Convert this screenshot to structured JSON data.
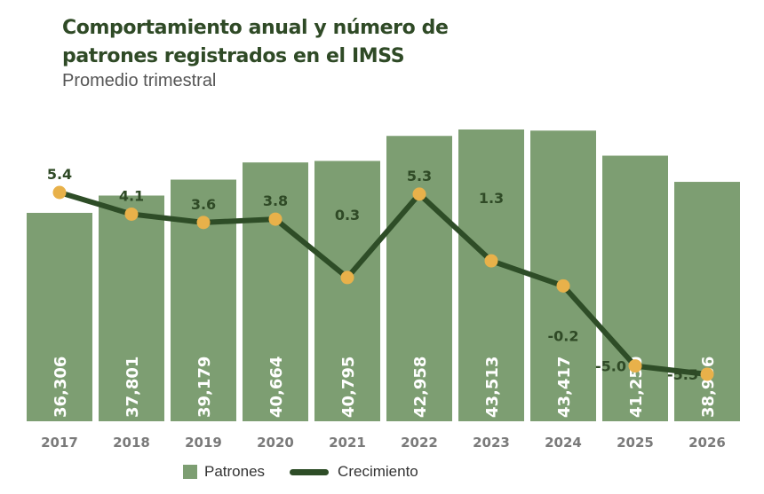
{
  "header": {
    "title": "Comportamiento anual y número de patrones registrados en el IMSS",
    "subtitle": "Promedio trimestral"
  },
  "legend": {
    "bars_label": "Patrones",
    "line_label": "Crecimiento"
  },
  "colors": {
    "bar": "#7d9e72",
    "line": "#2e4d27",
    "marker": "#e8b14a",
    "title": "#2f4a26",
    "growth_label": "#2f4a26",
    "bar_label": "#ffffff",
    "year_label": "#7a7a7a"
  },
  "chart_data": {
    "type": "bar",
    "categories": [
      "2017",
      "2018",
      "2019",
      "2020",
      "2021",
      "2022",
      "2023",
      "2024",
      "2025",
      "2026"
    ],
    "series": [
      {
        "name": "Patrones",
        "type": "bar",
        "values": [
          36306,
          37801,
          39179,
          40664,
          40795,
          42958,
          43513,
          43417,
          41250,
          38986
        ],
        "labels": [
          "36,306",
          "37,801",
          "39,179",
          "40,664",
          "40,795",
          "42,958",
          "43,513",
          "43,417",
          "41,250",
          "38,986"
        ]
      },
      {
        "name": "Crecimiento",
        "type": "line",
        "values": [
          5.4,
          4.1,
          3.6,
          3.8,
          0.3,
          5.3,
          1.3,
          -0.2,
          -5.0,
          -5.5
        ],
        "labels": [
          "5.4",
          "4.1",
          "3.6",
          "3.8",
          "0.3",
          "5.3",
          "1.3",
          "-0.2",
          "-5.0",
          "-5.5"
        ]
      }
    ],
    "grid": false,
    "legend_position": "bottom"
  }
}
